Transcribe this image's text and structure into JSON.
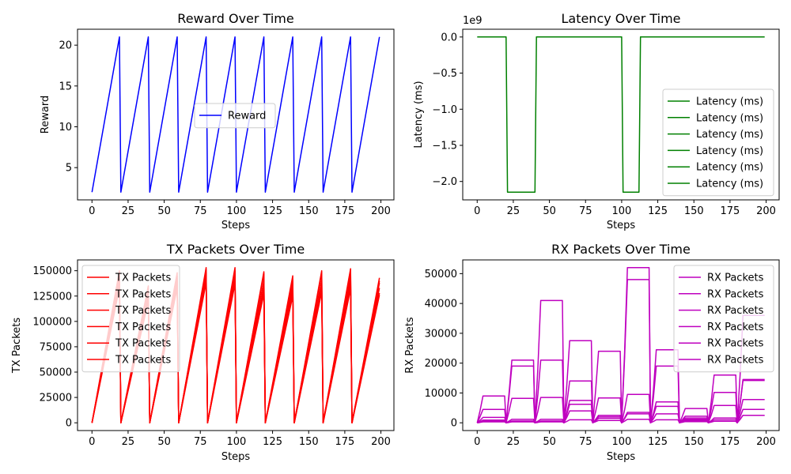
{
  "chart_data": [
    {
      "type": "line",
      "title": "Reward Over Time",
      "xlabel": "Steps",
      "ylabel": "Reward",
      "xlim": [
        -10,
        209
      ],
      "ylim": [
        1.05,
        21.95
      ],
      "xticks": [
        0,
        25,
        50,
        75,
        100,
        125,
        150,
        175,
        200
      ],
      "xtick_labels": [
        "0",
        "25",
        "50",
        "75",
        "100",
        "125",
        "150",
        "175",
        "200"
      ],
      "yticks": [
        5,
        10,
        15,
        20
      ],
      "ytick_labels": [
        "5",
        "10",
        "15",
        "20"
      ],
      "grid": false,
      "legend": {
        "placement": "center",
        "entries": [
          "Reward"
        ]
      },
      "series": [
        {
          "name": "Reward",
          "color": "#0000ff",
          "pattern": "sawtooth",
          "period": 20,
          "steps": 200,
          "min": 2,
          "max": 21
        }
      ]
    },
    {
      "type": "line",
      "title": "Latency Over Time",
      "xlabel": "Steps",
      "ylabel": "Latency (ms)",
      "axis_multiplier": "1e9",
      "xlim": [
        -10,
        209
      ],
      "ylim": [
        -2.2547,
        0.1074
      ],
      "xticks": [
        0,
        25,
        50,
        75,
        100,
        125,
        150,
        175,
        200
      ],
      "xtick_labels": [
        "0",
        "25",
        "50",
        "75",
        "100",
        "125",
        "150",
        "175",
        "200"
      ],
      "yticks": [
        0.0,
        -0.5,
        -1.0,
        -1.5,
        -2.0
      ],
      "ytick_labels": [
        "0.0",
        "−0.5",
        "−1.0",
        "−1.5",
        "−2.0"
      ],
      "grid": false,
      "legend": {
        "placement": "lower right",
        "entries": [
          "Latency (ms)",
          "Latency (ms)",
          "Latency (ms)",
          "Latency (ms)",
          "Latency (ms)",
          "Latency (ms)"
        ]
      },
      "series": [
        {
          "name": "Latency (ms)",
          "color": "#008000",
          "baseline": 0,
          "dips": [
            [
              20,
              40,
              -2.147
            ],
            [
              100,
              112,
              -2.147
            ]
          ]
        }
      ]
    },
    {
      "type": "line",
      "title": "TX Packets Over Time",
      "xlabel": "Steps",
      "ylabel": "TX Packets",
      "xlim": [
        -10,
        209
      ],
      "ylim": [
        -7650,
        160650
      ],
      "xticks": [
        0,
        25,
        50,
        75,
        100,
        125,
        150,
        175,
        200
      ],
      "xtick_labels": [
        "0",
        "25",
        "50",
        "75",
        "100",
        "125",
        "150",
        "175",
        "200"
      ],
      "yticks": [
        0,
        25000,
        50000,
        75000,
        100000,
        125000,
        150000
      ],
      "ytick_labels": [
        "0",
        "25000",
        "50000",
        "75000",
        "100000",
        "125000",
        "150000"
      ],
      "grid": false,
      "legend": {
        "placement": "upper left",
        "entries": [
          "TX Packets",
          "TX Packets",
          "TX Packets",
          "TX Packets",
          "TX Packets",
          "TX Packets"
        ]
      },
      "series_color": "#ff0000",
      "period": 20,
      "segment_peaks": [
        [
          150000,
          146000,
          142000,
          140000,
          137000,
          133000
        ],
        [
          135000,
          131000,
          128000,
          126000,
          122000,
          120000
        ],
        [
          148000,
          145000,
          142000,
          139000,
          136000,
          133000
        ],
        [
          153000,
          151000,
          148000,
          144000,
          141000,
          138000
        ],
        [
          153000,
          150000,
          146000,
          143000,
          140000,
          137000
        ],
        [
          149000,
          147000,
          140000,
          134000,
          130000,
          127000
        ],
        [
          145000,
          141000,
          137000,
          133000,
          129000,
          125000
        ],
        [
          150000,
          148000,
          141000,
          135000,
          132000,
          129000
        ],
        [
          152000,
          150000,
          144000,
          140000,
          136000,
          132000
        ],
        [
          143000,
          140000,
          138000,
          133000,
          128000,
          126000
        ]
      ]
    },
    {
      "type": "line",
      "title": "RX Packets Over Time",
      "xlabel": "Steps",
      "ylabel": "RX Packets",
      "xlim": [
        -10,
        209
      ],
      "ylim": [
        -2600,
        54600
      ],
      "xticks": [
        0,
        25,
        50,
        75,
        100,
        125,
        150,
        175,
        200
      ],
      "xtick_labels": [
        "0",
        "25",
        "50",
        "75",
        "100",
        "125",
        "150",
        "175",
        "200"
      ],
      "yticks": [
        0,
        10000,
        20000,
        30000,
        40000,
        50000
      ],
      "ytick_labels": [
        "0",
        "10000",
        "20000",
        "30000",
        "40000",
        "50000"
      ],
      "grid": false,
      "legend": {
        "placement": "upper right",
        "entries": [
          "RX Packets",
          "RX Packets",
          "RX Packets",
          "RX Packets",
          "RX Packets",
          "RX Packets"
        ]
      },
      "series_color": "#bf00bf",
      "period": 20,
      "segment_plateaus": [
        [
          9000,
          4500,
          1800,
          900,
          500,
          300
        ],
        [
          21000,
          19000,
          8200,
          1200,
          600,
          300
        ],
        [
          41000,
          21000,
          8500,
          1200,
          600,
          300
        ],
        [
          27500,
          14000,
          7500,
          6200,
          4000,
          1000
        ],
        [
          24000,
          8300,
          2500,
          2000,
          1500,
          800
        ],
        [
          48000,
          52000,
          9500,
          3500,
          3000,
          1200
        ],
        [
          24500,
          19000,
          7000,
          5500,
          3000,
          1000
        ],
        [
          4800,
          2200,
          1600,
          1200,
          800,
          400
        ],
        [
          16000,
          10200,
          5800,
          1600,
          1000,
          500
        ],
        [
          36000,
          14200,
          14500,
          7800,
          4500,
          2500
        ]
      ]
    }
  ]
}
